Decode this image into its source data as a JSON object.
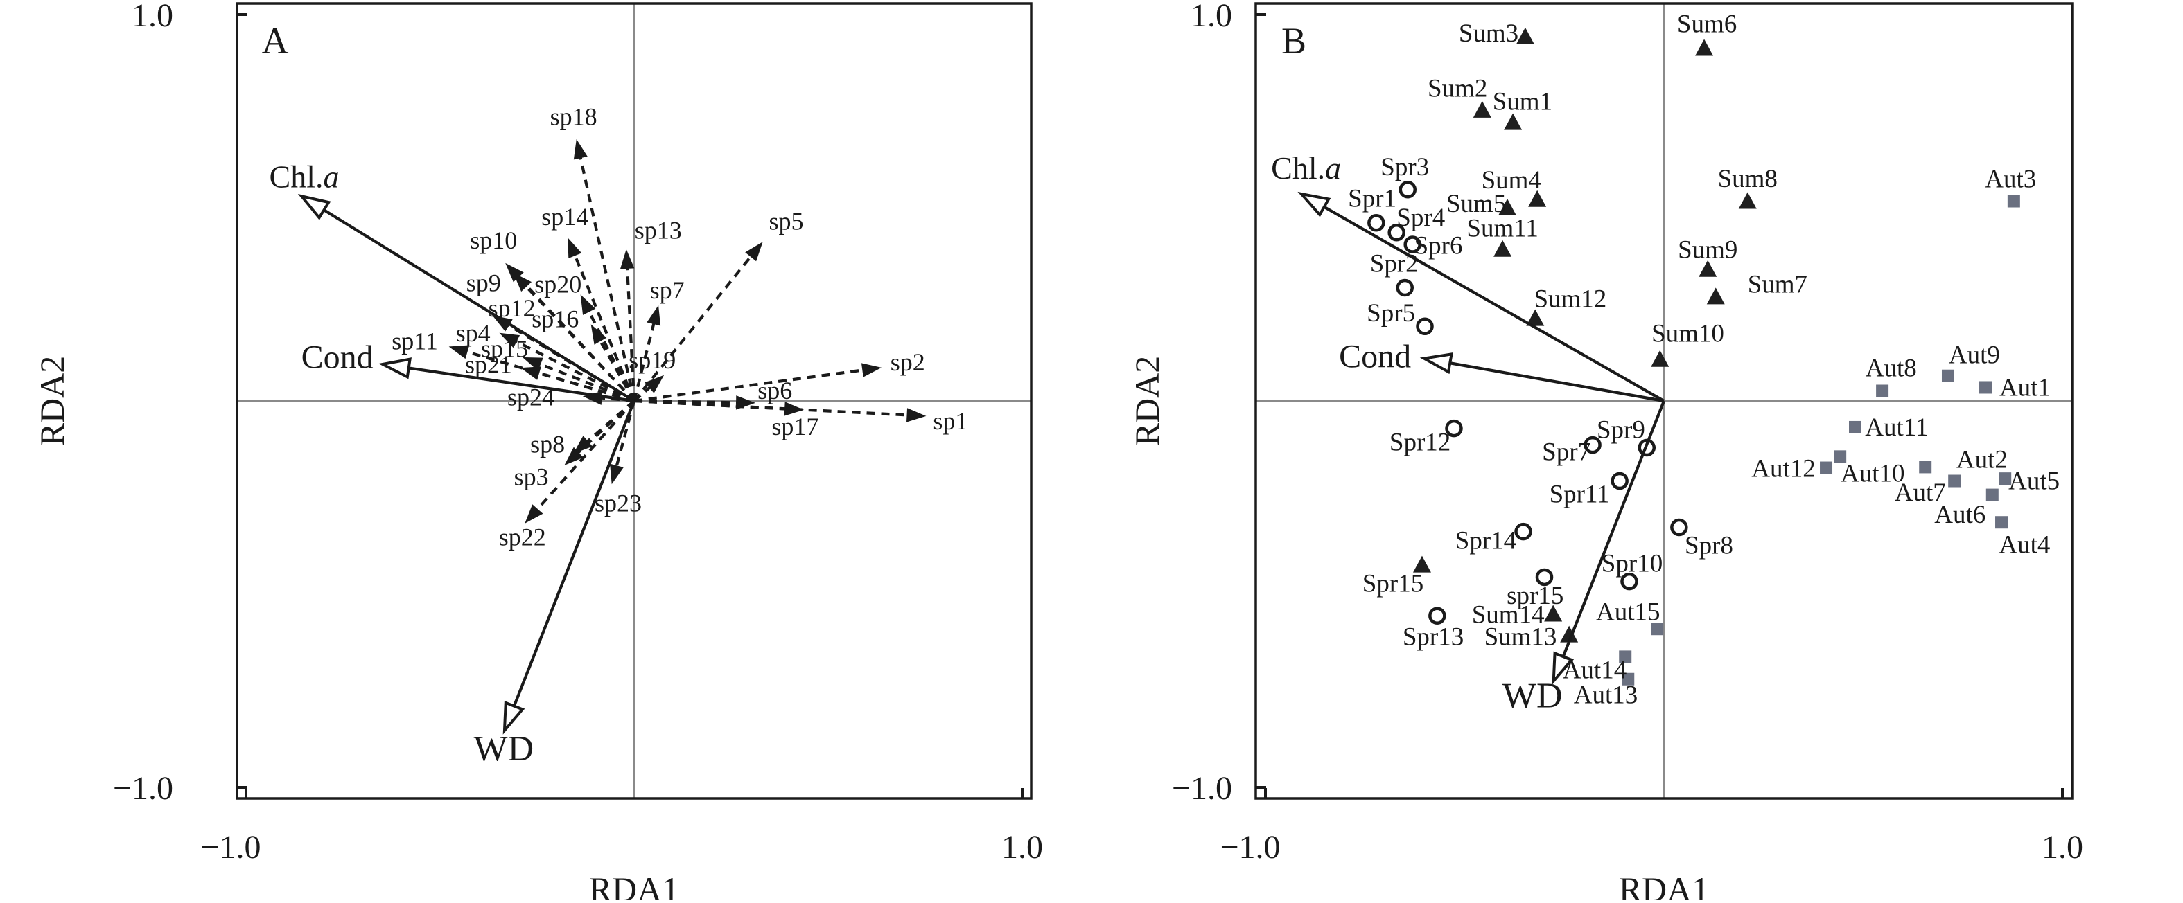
{
  "figure": {
    "background": "#ffffff",
    "border_color": "#1a1a1a",
    "axis_cross_color": "#8a8a8a",
    "text_color": "#1a1a1a",
    "triangle_color": "#1f1f1f",
    "square_color": "#6a7080",
    "circle_stroke": "#1a1a1a"
  },
  "chart_data": [
    {
      "type": "scatter",
      "subtype": "rda-triplot-species",
      "panel_letter": "A",
      "xlabel": "RDA1",
      "ylabel": "RDA2",
      "xlim": [
        -1.025,
        1.025
      ],
      "ylim": [
        -1.025,
        1.025
      ],
      "x_ticks": [
        -1.0,
        1.0
      ],
      "y_ticks": [
        -1.0,
        1.0
      ],
      "x_tick_labels": [
        "−1.0",
        "1.0"
      ],
      "y_tick_labels": [
        "−1.0",
        "1.0"
      ],
      "grid": false,
      "legend": "none",
      "env_arrows": [
        {
          "n": "Chl.",
          "it": "a",
          "x": -0.857,
          "y": 0.53,
          "lx": -0.85,
          "ly": 0.578,
          "fs": 46
        },
        {
          "n": "Cond",
          "it": "",
          "x": -0.648,
          "y": 0.095,
          "lx": -0.765,
          "ly": 0.11,
          "fs": 48
        },
        {
          "n": "WD",
          "it": "",
          "x": -0.334,
          "y": -0.853,
          "lx": -0.336,
          "ly": -0.905,
          "fs": 52
        }
      ],
      "species_arrows": [
        {
          "n": "sp1",
          "x": 0.75,
          "y": -0.039,
          "lx": 0.815,
          "ly": -0.052
        },
        {
          "n": "sp2",
          "x": 0.635,
          "y": 0.086,
          "lx": 0.705,
          "ly": 0.1
        },
        {
          "n": "sp3",
          "x": -0.178,
          "y": -0.165,
          "lx": -0.265,
          "ly": -0.196
        },
        {
          "n": "sp4",
          "x": -0.345,
          "y": 0.175,
          "lx": -0.415,
          "ly": 0.176
        },
        {
          "n": "sp5",
          "x": 0.33,
          "y": 0.41,
          "lx": 0.392,
          "ly": 0.465
        },
        {
          "n": "sp6",
          "x": 0.31,
          "y": -0.005,
          "lx": 0.363,
          "ly": 0.027
        },
        {
          "n": "sp7",
          "x": 0.062,
          "y": 0.245,
          "lx": 0.085,
          "ly": 0.287
        },
        {
          "n": "sp8",
          "x": -0.155,
          "y": -0.135,
          "lx": -0.223,
          "ly": -0.112
        },
        {
          "n": "sp9",
          "x": -0.31,
          "y": 0.33,
          "lx": -0.388,
          "ly": 0.306
        },
        {
          "n": "sp10",
          "x": -0.33,
          "y": 0.355,
          "lx": -0.362,
          "ly": 0.416
        },
        {
          "n": "sp11",
          "x": -0.475,
          "y": 0.14,
          "lx": -0.565,
          "ly": 0.155
        },
        {
          "n": "sp12",
          "x": -0.363,
          "y": 0.22,
          "lx": -0.315,
          "ly": 0.24
        },
        {
          "n": "sp13",
          "x": -0.02,
          "y": 0.39,
          "lx": 0.062,
          "ly": 0.442
        },
        {
          "n": "sp14",
          "x": -0.17,
          "y": 0.42,
          "lx": -0.178,
          "ly": 0.477
        },
        {
          "n": "sp15",
          "x": -0.285,
          "y": 0.112,
          "lx": -0.334,
          "ly": 0.135
        },
        {
          "n": "sp16",
          "x": -0.11,
          "y": 0.196,
          "lx": -0.203,
          "ly": 0.212
        },
        {
          "n": "sp17",
          "x": 0.435,
          "y": -0.023,
          "lx": 0.415,
          "ly": -0.066
        },
        {
          "n": "sp18",
          "x": -0.148,
          "y": 0.675,
          "lx": -0.156,
          "ly": 0.736
        },
        {
          "n": "sp19",
          "x": 0.075,
          "y": 0.065,
          "lx": 0.047,
          "ly": 0.106
        },
        {
          "n": "sp20",
          "x": -0.137,
          "y": 0.273,
          "lx": -0.196,
          "ly": 0.302
        },
        {
          "n": "sp21",
          "x": -0.29,
          "y": 0.085,
          "lx": -0.375,
          "ly": 0.094
        },
        {
          "n": "sp22",
          "x": -0.28,
          "y": -0.315,
          "lx": -0.288,
          "ly": -0.352
        },
        {
          "n": "sp23",
          "x": -0.057,
          "y": -0.213,
          "lx": -0.041,
          "ly": -0.264
        },
        {
          "n": "sp24",
          "x": -0.13,
          "y": 0.012,
          "lx": -0.266,
          "ly": 0.01
        }
      ],
      "groups": []
    },
    {
      "type": "scatter",
      "subtype": "rda-triplot-sites",
      "panel_letter": "B",
      "xlabel": "RDA1",
      "ylabel": "RDA2",
      "xlim": [
        -1.025,
        1.025
      ],
      "ylim": [
        -1.025,
        1.025
      ],
      "x_ticks": [
        -1.0,
        1.0
      ],
      "y_ticks": [
        -1.0,
        1.0
      ],
      "x_tick_labels": [
        "−1.0",
        "1.0"
      ],
      "y_tick_labels": [
        "−1.0",
        "1.0"
      ],
      "grid": false,
      "legend": "none",
      "env_arrows": [
        {
          "n": "Chl.",
          "it": "a",
          "x": -0.91,
          "y": 0.536,
          "lx": -0.898,
          "ly": 0.6,
          "fs": 46
        },
        {
          "n": "Cond",
          "it": "",
          "x": -0.602,
          "y": 0.11,
          "lx": -0.725,
          "ly": 0.112,
          "fs": 48
        },
        {
          "n": "WD",
          "it": "",
          "x": -0.277,
          "y": -0.725,
          "lx": -0.33,
          "ly": -0.768,
          "fs": 52
        }
      ],
      "species_arrows": [],
      "groups": [
        {
          "name": "Spring",
          "marker": "circle",
          "points": [
            {
              "n": "Spr1",
              "x": -0.722,
              "y": 0.461,
              "lx": -0.732,
              "ly": 0.524
            },
            {
              "n": "Spr2",
              "x": -0.65,
              "y": 0.293,
              "lx": -0.677,
              "ly": 0.356
            },
            {
              "n": "Spr3",
              "x": -0.643,
              "y": 0.547,
              "lx": -0.65,
              "ly": 0.606
            },
            {
              "n": "Spr4",
              "x": -0.671,
              "y": 0.436,
              "lx": -0.61,
              "ly": 0.475
            },
            {
              "n": "Spr5",
              "x": -0.6,
              "y": 0.193,
              "lx": -0.685,
              "ly": 0.228
            },
            {
              "n": "Spr6",
              "x": -0.631,
              "y": 0.405,
              "lx": -0.566,
              "ly": 0.402
            },
            {
              "n": "Spr7",
              "x": -0.179,
              "y": -0.114,
              "lx": -0.245,
              "ly": -0.132
            },
            {
              "n": "Spr8",
              "x": 0.038,
              "y": -0.327,
              "lx": 0.113,
              "ly": -0.374
            },
            {
              "n": "Spr9",
              "x": -0.043,
              "y": -0.121,
              "lx": -0.108,
              "ly": -0.074
            },
            {
              "n": "Spr10",
              "x": -0.087,
              "y": -0.467,
              "lx": -0.08,
              "ly": -0.42
            },
            {
              "n": "Spr11",
              "x": -0.111,
              "y": -0.207,
              "lx": -0.212,
              "ly": -0.241
            },
            {
              "n": "Spr12",
              "x": -0.527,
              "y": -0.071,
              "lx": -0.612,
              "ly": -0.107
            },
            {
              "n": "Spr13",
              "x": -0.569,
              "y": -0.556,
              "lx": -0.579,
              "ly": -0.61
            },
            {
              "n": "Spr14",
              "x": -0.353,
              "y": -0.338,
              "lx": -0.447,
              "ly": -0.361
            },
            {
              "n": "spr15",
              "x": -0.3,
              "y": -0.456,
              "lx": -0.323,
              "ly": -0.504
            }
          ]
        },
        {
          "name": "Summer",
          "marker": "triangle",
          "points": [
            {
              "n": "Sum1",
              "x": -0.379,
              "y": 0.721,
              "lx": -0.355,
              "ly": 0.775
            },
            {
              "n": "Sum2",
              "x": -0.456,
              "y": 0.753,
              "lx": -0.518,
              "ly": 0.809
            },
            {
              "n": "Sum3",
              "x": -0.348,
              "y": 0.943,
              "lx": -0.44,
              "ly": 0.952
            },
            {
              "n": "Sum4",
              "x": -0.318,
              "y": 0.522,
              "lx": -0.383,
              "ly": 0.572
            },
            {
              "n": "Sum5",
              "x": -0.393,
              "y": 0.5,
              "lx": -0.471,
              "ly": 0.511
            },
            {
              "n": "Sum6",
              "x": 0.101,
              "y": 0.913,
              "lx": 0.108,
              "ly": 0.976
            },
            {
              "n": "Sum7",
              "x": 0.13,
              "y": 0.27,
              "lx": 0.285,
              "ly": 0.302
            },
            {
              "n": "Sum8",
              "x": 0.21,
              "y": 0.517,
              "lx": 0.21,
              "ly": 0.575
            },
            {
              "n": "Sum9",
              "x": 0.11,
              "y": 0.341,
              "lx": 0.11,
              "ly": 0.392
            },
            {
              "n": "Sum10",
              "x": -0.01,
              "y": 0.108,
              "lx": 0.06,
              "ly": 0.175
            },
            {
              "n": "Sum11",
              "x": -0.405,
              "y": 0.393,
              "lx": -0.405,
              "ly": 0.447
            },
            {
              "n": "Sum12",
              "x": -0.323,
              "y": 0.214,
              "lx": -0.235,
              "ly": 0.264
            },
            {
              "n": "Sum13",
              "x": -0.238,
              "y": -0.605,
              "lx": -0.36,
              "ly": -0.61
            },
            {
              "n": "Sum14",
              "x": -0.278,
              "y": -0.551,
              "lx": -0.391,
              "ly": -0.553
            },
            {
              "n": "Spr15",
              "x": -0.607,
              "y": -0.424,
              "lx": -0.68,
              "ly": -0.472
            }
          ]
        },
        {
          "name": "Autumn",
          "marker": "square",
          "points": [
            {
              "n": "Aut1",
              "x": 0.807,
              "y": 0.035,
              "lx": 0.906,
              "ly": 0.035
            },
            {
              "n": "Aut2",
              "x": 0.729,
              "y": -0.207,
              "lx": 0.798,
              "ly": -0.151
            },
            {
              "n": "Aut3",
              "x": 0.878,
              "y": 0.517,
              "lx": 0.87,
              "ly": 0.574
            },
            {
              "n": "Aut4",
              "x": 0.847,
              "y": -0.314,
              "lx": 0.905,
              "ly": -0.372
            },
            {
              "n": "Aut5",
              "x": 0.856,
              "y": -0.201,
              "lx": 0.929,
              "ly": -0.207
            },
            {
              "n": "Aut6",
              "x": 0.824,
              "y": -0.243,
              "lx": 0.743,
              "ly": -0.294
            },
            {
              "n": "Aut7",
              "x": 0.656,
              "y": -0.171,
              "lx": 0.643,
              "ly": -0.237
            },
            {
              "n": "Aut8",
              "x": 0.548,
              "y": 0.026,
              "lx": 0.57,
              "ly": 0.085
            },
            {
              "n": "Aut9",
              "x": 0.713,
              "y": 0.065,
              "lx": 0.779,
              "ly": 0.119
            },
            {
              "n": "Aut10",
              "x": 0.442,
              "y": -0.144,
              "lx": 0.524,
              "ly": -0.187
            },
            {
              "n": "Aut11",
              "x": 0.48,
              "y": -0.068,
              "lx": 0.584,
              "ly": -0.068
            },
            {
              "n": "Aut12",
              "x": 0.407,
              "y": -0.173,
              "lx": 0.3,
              "ly": -0.175
            },
            {
              "n": "Aut13",
              "x": -0.09,
              "y": -0.72,
              "lx": -0.146,
              "ly": -0.761
            },
            {
              "n": "Aut14",
              "x": -0.097,
              "y": -0.662,
              "lx": -0.174,
              "ly": -0.696
            },
            {
              "n": "Aut15",
              "x": -0.017,
              "y": -0.59,
              "lx": -0.09,
              "ly": -0.546
            }
          ]
        }
      ]
    }
  ]
}
